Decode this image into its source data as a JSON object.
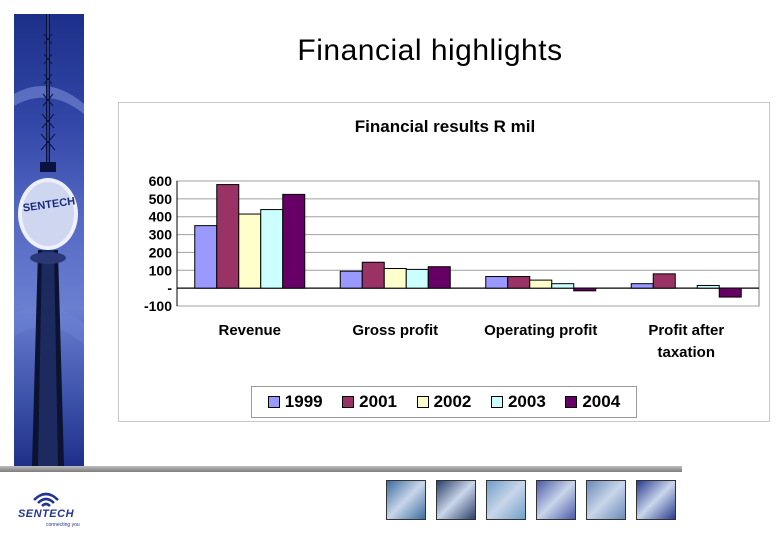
{
  "slide": {
    "title": "Financial highlights",
    "logo_text": "SENTECH",
    "logo_sub": "connecting you",
    "banner_sign": "SENTECH"
  },
  "colors": {
    "banner": "#2c3f9c",
    "rule": "#9a9a9a",
    "gridline": "#7f7f7f"
  },
  "thumbnails": [
    {
      "name": "thumb-equipment",
      "color": "#3d6c9e"
    },
    {
      "name": "thumb-device",
      "color": "#2c3f6a"
    },
    {
      "name": "thumb-tower",
      "color": "#6f9fc8"
    },
    {
      "name": "thumb-building",
      "color": "#4b5aa8"
    },
    {
      "name": "thumb-dish",
      "color": "#6a8ab8"
    },
    {
      "name": "thumb-globe",
      "color": "#2a3c90"
    }
  ],
  "chart_data": {
    "type": "bar",
    "title": "Financial results R mil",
    "categories": [
      "Revenue",
      "Gross profit",
      "Operating profit",
      "Profit after taxation"
    ],
    "category_lines": [
      [
        "Revenue"
      ],
      [
        "Gross profit"
      ],
      [
        "Operating profit"
      ],
      [
        "Profit after",
        "taxation"
      ]
    ],
    "series": [
      {
        "name": "1999",
        "color": "#9999ff",
        "values": [
          350,
          95,
          65,
          25
        ]
      },
      {
        "name": "2001",
        "color": "#993366",
        "values": [
          580,
          145,
          65,
          80
        ]
      },
      {
        "name": "2002",
        "color": "#ffffcc",
        "values": [
          415,
          110,
          45,
          0
        ]
      },
      {
        "name": "2003",
        "color": "#ccffff",
        "values": [
          440,
          105,
          25,
          15
        ]
      },
      {
        "name": "2004",
        "color": "#660066",
        "values": [
          525,
          120,
          -15,
          -50
        ]
      }
    ],
    "yticks": [
      600,
      500,
      400,
      300,
      200,
      100,
      0,
      -100
    ],
    "ytick_labels": [
      "600",
      "500",
      "400",
      "300",
      "200",
      "100",
      "-",
      "-100"
    ],
    "ylim": [
      -100,
      600
    ],
    "xlabel": "",
    "ylabel": "",
    "grid": true,
    "legend_position": "bottom"
  }
}
